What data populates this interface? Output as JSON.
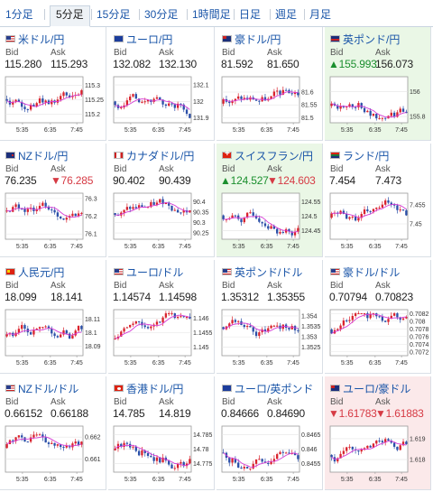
{
  "tabs": [
    {
      "label": "1分足",
      "active": false
    },
    {
      "label": "5分足",
      "active": true
    },
    {
      "label": "15分足",
      "active": false
    },
    {
      "label": "30分足",
      "active": false
    },
    {
      "label": "1時間足",
      "active": false
    },
    {
      "label": "日足",
      "active": false
    },
    {
      "label": "週足",
      "active": false
    },
    {
      "label": "月足",
      "active": false
    }
  ],
  "labels": {
    "bid": "Bid",
    "ask": "Ask"
  },
  "colors": {
    "up_bg": "#eaf7e6",
    "down_bg": "#fbe9ea",
    "candle_up": "#d9232e",
    "candle_down": "#2b4fa8",
    "ma": "#d63bd6",
    "link": "#1a55a8"
  },
  "time_labels": [
    "5:35",
    "6:35",
    "7:45"
  ],
  "pairs": [
    {
      "name": "米ドル/円",
      "flag": "us",
      "bid": "115.280",
      "ask": "115.293",
      "state": "",
      "yticks": [
        "115.3",
        "115.25",
        "115.2"
      ],
      "yvals": [
        115.3,
        115.25,
        115.2
      ],
      "ylim": [
        115.17,
        115.33
      ]
    },
    {
      "name": "ユーロ/円",
      "flag": "eu",
      "bid": "132.082",
      "ask": "132.130",
      "state": "",
      "yticks": [
        "132.1",
        "132",
        "131.9"
      ],
      "yvals": [
        132.1,
        132.0,
        131.9
      ],
      "ylim": [
        131.87,
        132.15
      ]
    },
    {
      "name": "豪ドル/円",
      "flag": "au",
      "bid": "81.592",
      "ask": "81.650",
      "state": "",
      "yticks": [
        "81.6",
        "81.55",
        "81.5"
      ],
      "yvals": [
        81.6,
        81.55,
        81.5
      ],
      "ylim": [
        81.48,
        81.66
      ]
    },
    {
      "name": "英ポンド/円",
      "flag": "gb",
      "bid": "▲155.993",
      "ask": "156.073",
      "state": "up",
      "yticks": [
        "156",
        "155.8"
      ],
      "yvals": [
        156.0,
        155.8
      ],
      "ylim": [
        155.75,
        156.12
      ]
    },
    {
      "name": "NZドル/円",
      "flag": "nz",
      "bid": "76.235",
      "ask": "▼76.285",
      "state": "",
      "yticks": [
        "76.3",
        "76.2",
        "76.1"
      ],
      "yvals": [
        76.3,
        76.2,
        76.1
      ],
      "ylim": [
        76.07,
        76.33
      ]
    },
    {
      "name": "カナダドル/円",
      "flag": "ca",
      "bid": "90.402",
      "ask": "90.439",
      "state": "",
      "yticks": [
        "90.4",
        "90.35",
        "90.3",
        "90.25"
      ],
      "yvals": [
        90.4,
        90.35,
        90.3,
        90.25
      ],
      "ylim": [
        90.22,
        90.44
      ]
    },
    {
      "name": "スイスフラン/円",
      "flag": "ch",
      "bid": "▲124.527",
      "ask": "▼124.603",
      "state": "up",
      "yticks": [
        "124.55",
        "124.5",
        "124.45"
      ],
      "yvals": [
        124.55,
        124.5,
        124.45
      ],
      "ylim": [
        124.42,
        124.58
      ]
    },
    {
      "name": "ランド/円",
      "flag": "za",
      "bid": "7.454",
      "ask": "7.473",
      "state": "",
      "yticks": [
        "7.455",
        "7.45"
      ],
      "yvals": [
        7.455,
        7.45
      ],
      "ylim": [
        7.446,
        7.458
      ]
    },
    {
      "name": "人民元/円",
      "flag": "cn",
      "bid": "18.099",
      "ask": "18.141",
      "state": "",
      "yticks": [
        "18.11",
        "18.1",
        "18.09"
      ],
      "yvals": [
        18.11,
        18.1,
        18.09
      ],
      "ylim": [
        18.083,
        18.117
      ]
    },
    {
      "name": "ユーロ/ドル",
      "flag": "us",
      "bid": "1.14574",
      "ask": "1.14598",
      "state": "",
      "yticks": [
        "1.146",
        "1.1455",
        "1.145"
      ],
      "yvals": [
        1.146,
        1.1455,
        1.145
      ],
      "ylim": [
        1.1447,
        1.1463
      ]
    },
    {
      "name": "英ポンド/ドル",
      "flag": "us",
      "bid": "1.35312",
      "ask": "1.35355",
      "state": "",
      "yticks": [
        "1.354",
        "1.3535",
        "1.353",
        "1.3525"
      ],
      "yvals": [
        1.354,
        1.3535,
        1.353,
        1.3525
      ],
      "ylim": [
        1.3521,
        1.3543
      ]
    },
    {
      "name": "豪ドル/ドル",
      "flag": "us",
      "bid": "0.70794",
      "ask": "0.70823",
      "state": "",
      "yticks": [
        "0.7082",
        "0.708",
        "0.7078",
        "0.7076",
        "0.7074",
        "0.7072"
      ],
      "yvals": [
        0.7082,
        0.708,
        0.7078,
        0.7076,
        0.7074,
        0.7072
      ],
      "ylim": [
        0.7071,
        0.7083
      ]
    },
    {
      "name": "NZドル/ドル",
      "flag": "us",
      "bid": "0.66152",
      "ask": "0.66188",
      "state": "",
      "yticks": [
        "0.662",
        "0.661"
      ],
      "yvals": [
        0.662,
        0.661
      ],
      "ylim": [
        0.6604,
        0.6625
      ]
    },
    {
      "name": "香港ドル/円",
      "flag": "hk",
      "bid": "14.785",
      "ask": "14.819",
      "state": "",
      "yticks": [
        "14.785",
        "14.78",
        "14.775"
      ],
      "yvals": [
        14.785,
        14.78,
        14.775
      ],
      "ylim": [
        14.772,
        14.788
      ]
    },
    {
      "name": "ユーロ/英ポンド",
      "flag": "eu",
      "bid": "0.84666",
      "ask": "0.84690",
      "state": "",
      "yticks": [
        "0.8465",
        "0.846",
        "0.8455"
      ],
      "yvals": [
        0.8465,
        0.846,
        0.8455
      ],
      "ylim": [
        0.8452,
        0.8468
      ]
    },
    {
      "name": "ユーロ/豪ドル",
      "flag": "au",
      "bid": "▼1.61783",
      "ask": "▼1.61883",
      "state": "down",
      "yticks": [
        "1.619",
        "1.618"
      ],
      "yvals": [
        1.619,
        1.618
      ],
      "ylim": [
        1.6174,
        1.6196
      ]
    }
  ]
}
